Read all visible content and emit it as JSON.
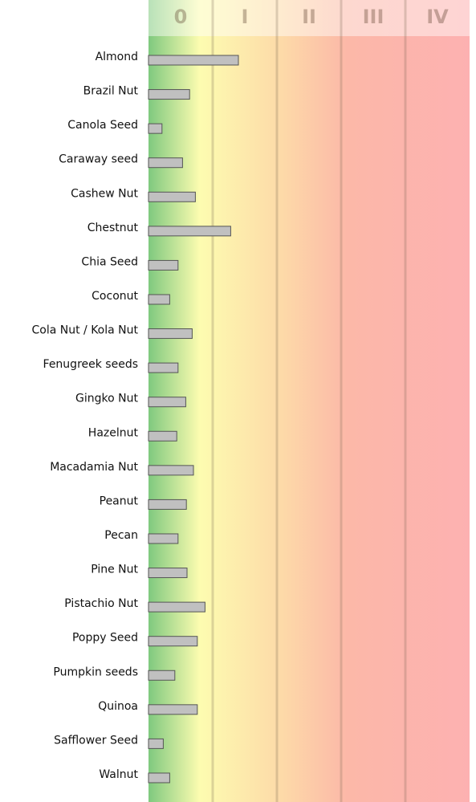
{
  "chart_data": {
    "type": "bar",
    "orientation": "horizontal",
    "categories": [
      "Almond",
      "Brazil Nut",
      "Canola Seed",
      "Caraway seed",
      "Cashew Nut",
      "Chestnut",
      "Chia Seed",
      "Coconut",
      "Cola Nut / Kola Nut",
      "Fenugreek seeds",
      "Gingko Nut",
      "Hazelnut",
      "Macadamia Nut",
      "Peanut",
      "Pecan",
      "Pine Nut",
      "Pistachio Nut",
      "Poppy Seed",
      "Pumpkin seeds",
      "Quinoa",
      "Safflower Seed",
      "Walnut"
    ],
    "values": [
      1.4,
      0.64,
      0.21,
      0.53,
      0.73,
      1.28,
      0.46,
      0.33,
      0.68,
      0.46,
      0.58,
      0.44,
      0.7,
      0.59,
      0.46,
      0.6,
      0.88,
      0.76,
      0.41,
      0.76,
      0.23,
      0.33
    ],
    "color": "#c0c0c0",
    "xlim": [
      0,
      5
    ],
    "xticks": [
      {
        "value": 0.5,
        "label": "0"
      },
      {
        "value": 1.5,
        "label": "I"
      },
      {
        "value": 2.5,
        "label": "II"
      },
      {
        "value": 3.5,
        "label": "III"
      },
      {
        "value": 4.5,
        "label": "IV"
      }
    ],
    "grid": true
  }
}
